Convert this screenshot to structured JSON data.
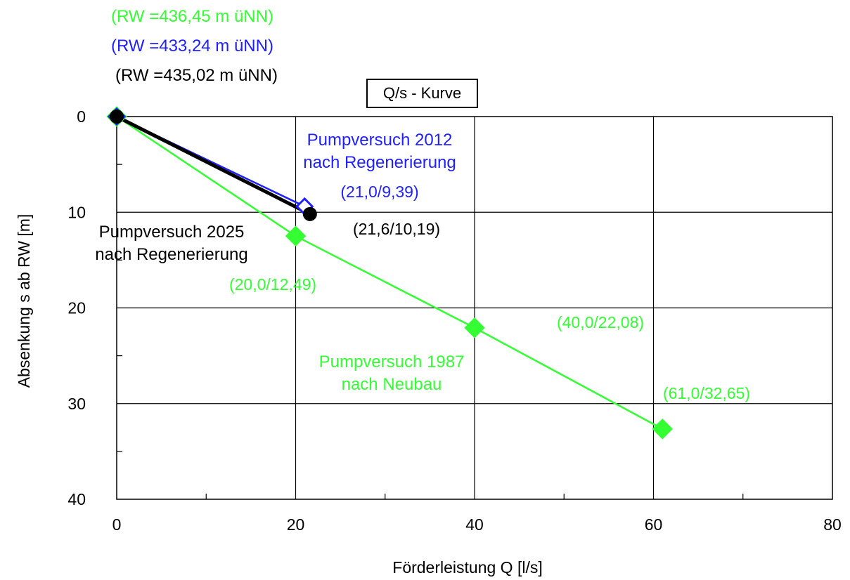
{
  "header": {
    "rw_lines": [
      {
        "text": "(RW =436,45 m üNN)",
        "color": "#33ff33"
      },
      {
        "text": "(RW =433,24 m üNN)",
        "color": "#2020ff"
      },
      {
        "text": "(RW =435,02 m üNN)",
        "color": "#000000"
      }
    ]
  },
  "chart_data": {
    "type": "line",
    "title": "Q/s - Kurve",
    "xlabel": "Förderleistung Q [l/s]",
    "ylabel": "Absenkung s ab RW [m]",
    "xlim": [
      0,
      80
    ],
    "ylim": [
      40,
      0
    ],
    "y_inverted": true,
    "x_ticks": [
      "0",
      "20",
      "40",
      "60",
      "80"
    ],
    "y_ticks": [
      "0",
      "10",
      "20",
      "30",
      "40"
    ],
    "grid": true,
    "series": [
      {
        "name": "Pumpversuch 1987 nach Neubau",
        "color": "#33ff33",
        "marker": "diamond-filled",
        "x": [
          0,
          20.0,
          40.0,
          61.0
        ],
        "y": [
          0,
          12.49,
          22.08,
          32.65
        ],
        "point_labels": [
          "",
          "(20,0/12,49)",
          "(40,0/22,08)",
          "(61,0/32,65)"
        ]
      },
      {
        "name": "Pumpversuch 2012 nach Regenerierung",
        "color": "#2020ff",
        "marker": "diamond-open",
        "x": [
          0,
          21.0
        ],
        "y": [
          0,
          9.39
        ],
        "point_labels": [
          "",
          "(21,0/9,39)"
        ]
      },
      {
        "name": "Pumpversuch 2025 nach Regenerierung",
        "color": "#000000",
        "marker": "circle-filled",
        "x": [
          0,
          21.6
        ],
        "y": [
          0,
          10.19
        ],
        "point_labels": [
          "",
          "(21,6/10,19)"
        ]
      }
    ],
    "annotations": [
      {
        "lines": [
          "Pumpversuch 2012",
          "nach Regenerierung"
        ],
        "color": "#2020ff"
      },
      {
        "lines": [
          "Pumpversuch 2025",
          "nach Regenerierung"
        ],
        "color": "#000000"
      },
      {
        "lines": [
          "Pumpversuch 1987",
          "nach Neubau"
        ],
        "color": "#33ff33"
      }
    ]
  }
}
